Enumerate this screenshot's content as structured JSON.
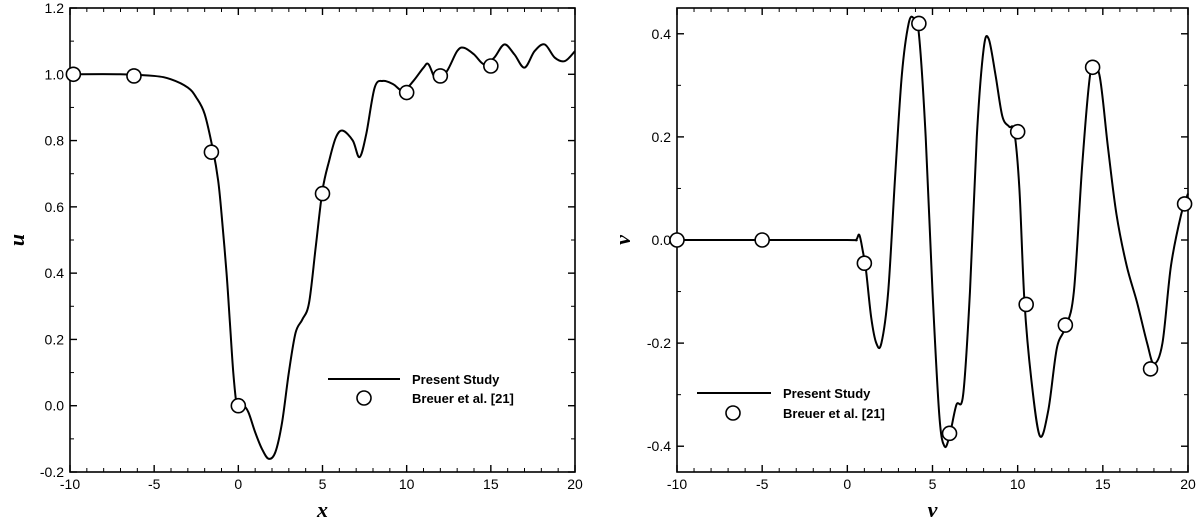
{
  "chart_data": [
    {
      "type": "line",
      "xlabel": "x",
      "ylabel": "u",
      "xlim": [
        -10,
        20
      ],
      "ylim": [
        -0.2,
        1.2
      ],
      "xticks": [
        "-10",
        "-5",
        "0",
        "5",
        "10",
        "15",
        "20"
      ],
      "yticks": [
        "-0.2",
        "0.0",
        "0.2",
        "0.4",
        "0.6",
        "0.8",
        "1.0",
        "1.2"
      ],
      "grid": false,
      "legend_position": "bottom-right",
      "series": [
        {
          "name": "Present Study",
          "style": "line",
          "x": [
            -10,
            -7,
            -5,
            -4,
            -3,
            -2.5,
            -2,
            -1.5,
            -1.2,
            -1,
            -0.7,
            -0.5,
            -0.3,
            -0.1,
            0,
            0.3,
            0.6,
            1,
            1.4,
            1.8,
            2.2,
            2.6,
            3,
            3.4,
            3.8,
            4.2,
            4.6,
            5,
            5.4,
            5.8,
            6.2,
            6.8,
            7.2,
            7.6,
            8.1,
            8.6,
            9.2,
            9.8,
            10.4,
            11,
            11.3,
            11.8,
            12.4,
            13,
            13.4,
            14,
            14.6,
            15.2,
            15.8,
            16.4,
            17,
            17.6,
            18.2,
            18.8,
            19.4,
            20
          ],
          "values": [
            1.0,
            1.0,
            0.995,
            0.985,
            0.96,
            0.93,
            0.88,
            0.77,
            0.68,
            0.58,
            0.4,
            0.25,
            0.1,
            0.0,
            -0.01,
            0.0,
            -0.02,
            -0.08,
            -0.13,
            -0.16,
            -0.14,
            -0.05,
            0.1,
            0.22,
            0.26,
            0.31,
            0.48,
            0.65,
            0.74,
            0.81,
            0.83,
            0.8,
            0.75,
            0.82,
            0.96,
            0.98,
            0.97,
            0.95,
            0.98,
            1.02,
            1.03,
            0.98,
            1.01,
            1.07,
            1.08,
            1.06,
            1.03,
            1.05,
            1.09,
            1.06,
            1.02,
            1.07,
            1.09,
            1.05,
            1.04,
            1.07
          ]
        },
        {
          "name": "Breuer et al. [21]",
          "style": "markers",
          "x": [
            -9.8,
            -6.2,
            -1.6,
            0.0,
            5.0,
            10.0,
            12.0,
            15.0
          ],
          "values": [
            1.0,
            0.995,
            0.765,
            0.0,
            0.64,
            0.945,
            0.995,
            1.025
          ]
        }
      ]
    },
    {
      "type": "line",
      "xlabel": "v",
      "ylabel": "v",
      "xlim": [
        -10,
        20
      ],
      "ylim": [
        -0.45,
        0.45
      ],
      "xticks": [
        "-10",
        "-5",
        "0",
        "5",
        "10",
        "15",
        "20"
      ],
      "yticks": [
        "-0.4",
        "-0.2",
        "0.0",
        "0.2",
        "0.4"
      ],
      "grid": false,
      "legend_position": "bottom-left",
      "series": [
        {
          "name": "Present Study",
          "style": "line",
          "x": [
            -10,
            -5,
            0,
            0.5,
            0.7,
            0.9,
            1.1,
            1.4,
            1.7,
            2.0,
            2.4,
            2.8,
            3.2,
            3.6,
            3.9,
            4.2,
            4.6,
            5.0,
            5.4,
            5.7,
            6.0,
            6.4,
            6.8,
            7.2,
            7.6,
            8.0,
            8.3,
            8.7,
            9.1,
            9.5,
            9.8,
            10.1,
            10.4,
            10.8,
            11.3,
            11.8,
            12.3,
            12.8,
            13.3,
            13.8,
            14.3,
            14.8,
            15.3,
            15.8,
            16.4,
            17.0,
            17.6,
            18.0,
            18.5,
            19.0,
            19.6,
            20.0
          ],
          "values": [
            0.0,
            0.0,
            0.0,
            0.0,
            0.01,
            -0.02,
            -0.06,
            -0.15,
            -0.2,
            -0.2,
            -0.1,
            0.12,
            0.32,
            0.42,
            0.43,
            0.4,
            0.2,
            -0.1,
            -0.34,
            -0.4,
            -0.38,
            -0.32,
            -0.3,
            -0.1,
            0.2,
            0.37,
            0.39,
            0.32,
            0.24,
            0.22,
            0.21,
            0.1,
            -0.12,
            -0.27,
            -0.38,
            -0.33,
            -0.21,
            -0.17,
            -0.1,
            0.15,
            0.33,
            0.32,
            0.18,
            0.05,
            -0.05,
            -0.12,
            -0.2,
            -0.24,
            -0.2,
            -0.05,
            0.05,
            0.09
          ]
        },
        {
          "name": "Breuer et al. [21]",
          "style": "markers",
          "x": [
            -10.0,
            -5.0,
            1.0,
            4.2,
            6.0,
            10.0,
            10.5,
            12.8,
            14.4,
            17.8,
            19.8
          ],
          "values": [
            0.0,
            0.0,
            -0.045,
            0.42,
            -0.375,
            0.21,
            -0.125,
            -0.165,
            0.335,
            -0.25,
            0.07
          ]
        }
      ]
    }
  ]
}
